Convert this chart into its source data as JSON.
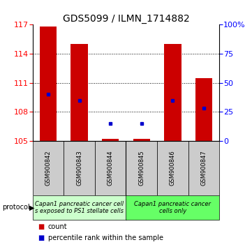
{
  "title": "GDS5099 / ILMN_1714882",
  "samples": [
    "GSM900842",
    "GSM900843",
    "GSM900844",
    "GSM900845",
    "GSM900846",
    "GSM900847"
  ],
  "bar_bottoms": [
    105,
    105,
    105,
    105,
    105,
    105
  ],
  "bar_heights": [
    11.8,
    10.0,
    0.2,
    0.2,
    10.0,
    6.5
  ],
  "percentile_values": [
    109.8,
    109.2,
    106.8,
    106.8,
    109.2,
    108.4
  ],
  "ylim_left": [
    105,
    117
  ],
  "ylim_right": [
    0,
    100
  ],
  "yticks_left": [
    105,
    108,
    111,
    114,
    117
  ],
  "yticks_right": [
    0,
    25,
    50,
    75,
    100
  ],
  "ytick_right_labels": [
    "0",
    "25",
    "50",
    "75",
    "100%"
  ],
  "bar_color": "#cc0000",
  "percentile_color": "#0000cc",
  "background_color": "#ffffff",
  "group1_label": "Capan1 pancreatic cancer cell\ns exposed to PS1 stellate cells",
  "group2_label": "Capan1 pancreatic cancer\ncells only",
  "group1_color": "#ccffcc",
  "group2_color": "#66ff66",
  "sample_box_color": "#cccccc",
  "protocol_label": "protocol",
  "legend_count_color": "#cc0000",
  "legend_percentile_color": "#0000cc",
  "title_fontsize": 10,
  "tick_fontsize": 8,
  "sample_fontsize": 6,
  "group_fontsize": 6,
  "legend_fontsize": 7
}
